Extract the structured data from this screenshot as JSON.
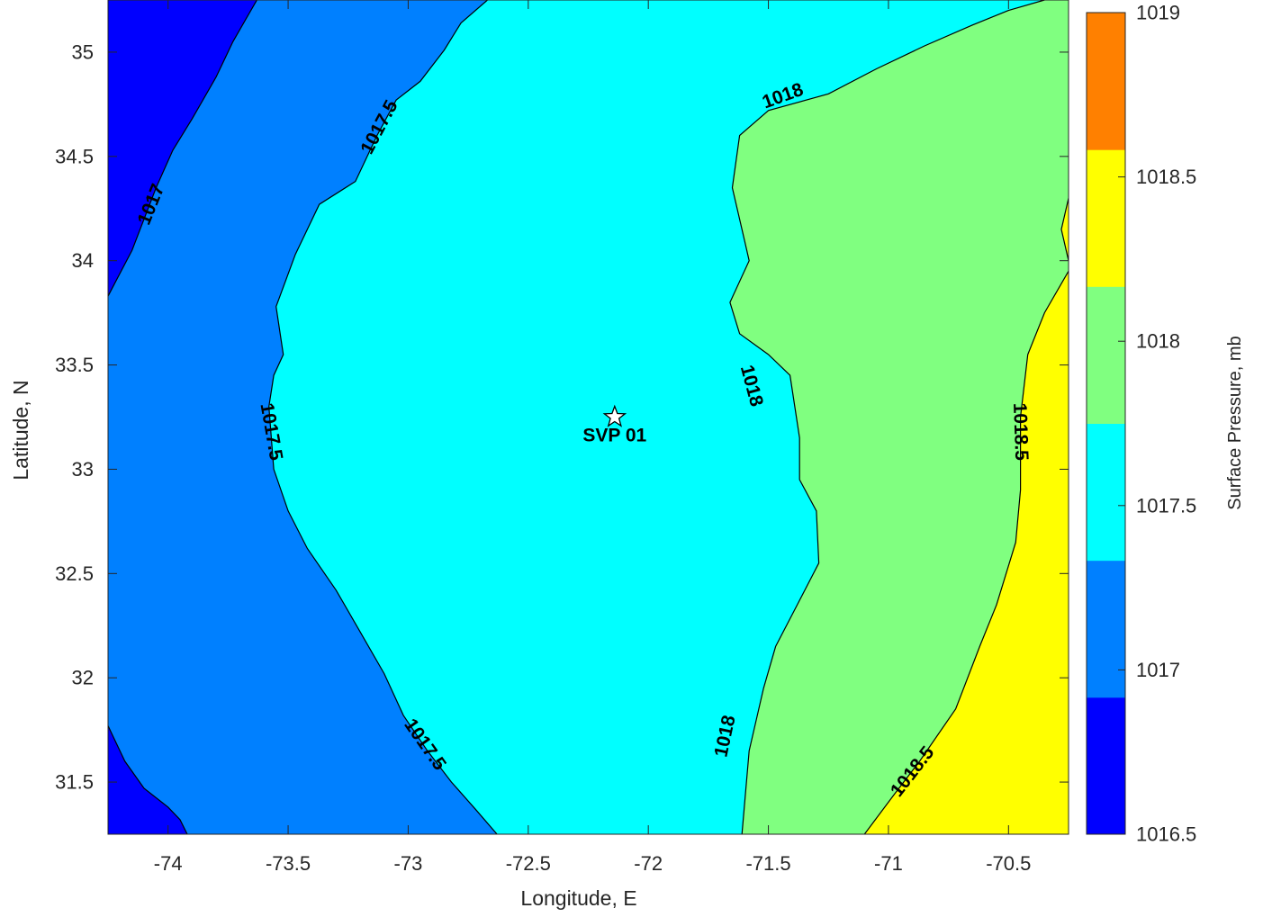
{
  "chart_data": {
    "type": "contourf",
    "title": "",
    "xlabel": "Longitude, E",
    "ylabel": "Latitude, N",
    "xlim": [
      -74.25,
      -70.25
    ],
    "ylim": [
      31.25,
      35.25
    ],
    "xticks": [
      -74,
      -73.5,
      -73,
      -72.5,
      -72,
      -71.5,
      -71,
      -70.5
    ],
    "yticks": [
      31.5,
      32,
      32.5,
      33,
      33.5,
      34,
      34.5,
      35
    ],
    "x_tick_labels": [
      "-74",
      "-73.5",
      "-73",
      "-72.5",
      "-72",
      "-71.5",
      "-71",
      "-70.5"
    ],
    "y_tick_labels": [
      "31.5",
      "32",
      "32.5",
      "33",
      "33.5",
      "34",
      "34.5",
      "35"
    ],
    "colorbar": {
      "label": "Surface Pressure, mb",
      "range": [
        1016.5,
        1019
      ],
      "ticks": [
        1016.5,
        1017,
        1017.5,
        1018,
        1018.5,
        1019
      ],
      "tick_labels": [
        "1016.5",
        "1017",
        "1017.5",
        "1018",
        "1018.5",
        "1019"
      ],
      "bands": [
        {
          "from": 1016.5,
          "to": 1016.9167,
          "color": "#0000ff"
        },
        {
          "from": 1016.9167,
          "to": 1017.3333,
          "color": "#0080ff"
        },
        {
          "from": 1017.3333,
          "to": 1017.75,
          "color": "#00ffff"
        },
        {
          "from": 1017.75,
          "to": 1018.1667,
          "color": "#80ff80"
        },
        {
          "from": 1018.1667,
          "to": 1018.5833,
          "color": "#ffff00"
        },
        {
          "from": 1018.5833,
          "to": 1019,
          "color": "#ff8000"
        }
      ]
    },
    "regions": [
      {
        "level": 1016.5,
        "color": "#0000ff"
      },
      {
        "level": 1017,
        "color": "#0080ff"
      },
      {
        "level": 1017.5,
        "color": "#00ffff"
      },
      {
        "level": 1018,
        "color": "#80ff80"
      },
      {
        "level": 1018.5,
        "color": "#ffff00"
      }
    ],
    "contours": [
      {
        "level": 1017,
        "segments": [
          [
            [
              -74.25,
              33.83
            ],
            [
              -74.15,
              34.05
            ],
            [
              -74.05,
              34.35
            ],
            [
              -73.98,
              34.53
            ],
            [
              -73.9,
              34.68
            ],
            [
              -73.8,
              34.88
            ],
            [
              -73.73,
              35.05
            ],
            [
              -73.68,
              35.15
            ],
            [
              -73.63,
              35.25
            ]
          ],
          [
            [
              -74.25,
              31.77
            ],
            [
              -74.18,
              31.6
            ],
            [
              -74.1,
              31.47
            ],
            [
              -74.0,
              31.38
            ],
            [
              -73.95,
              31.32
            ],
            [
              -73.92,
              31.25
            ]
          ]
        ]
      },
      {
        "level": 1017.5,
        "segments": [
          [
            [
              -72.67,
              35.25
            ],
            [
              -72.78,
              35.14
            ],
            [
              -72.85,
              35.01
            ],
            [
              -72.95,
              34.86
            ],
            [
              -73.05,
              34.77
            ],
            [
              -73.13,
              34.6
            ],
            [
              -73.22,
              34.38
            ],
            [
              -73.37,
              34.27
            ],
            [
              -73.47,
              34.03
            ],
            [
              -73.55,
              33.78
            ],
            [
              -73.52,
              33.55
            ],
            [
              -73.56,
              33.45
            ],
            [
              -73.58,
              33.3
            ],
            [
              -73.56,
              33.0
            ],
            [
              -73.5,
              32.8
            ],
            [
              -73.42,
              32.62
            ],
            [
              -73.3,
              32.42
            ],
            [
              -73.2,
              32.22
            ],
            [
              -73.1,
              32.02
            ],
            [
              -73.02,
              31.82
            ],
            [
              -72.92,
              31.65
            ],
            [
              -72.82,
              31.5
            ],
            [
              -72.72,
              31.37
            ],
            [
              -72.63,
              31.25
            ]
          ]
        ]
      },
      {
        "level": 1018,
        "segments": [
          [
            [
              -70.35,
              35.25
            ],
            [
              -70.5,
              35.2
            ],
            [
              -70.65,
              35.13
            ],
            [
              -70.85,
              35.03
            ],
            [
              -71.05,
              34.92
            ],
            [
              -71.25,
              34.8
            ],
            [
              -71.5,
              34.72
            ],
            [
              -71.62,
              34.6
            ],
            [
              -71.65,
              34.35
            ],
            [
              -71.6,
              34.1
            ],
            [
              -71.58,
              34.0
            ],
            [
              -71.66,
              33.8
            ],
            [
              -71.62,
              33.65
            ],
            [
              -71.5,
              33.55
            ],
            [
              -71.41,
              33.45
            ],
            [
              -71.37,
              33.15
            ],
            [
              -71.37,
              32.95
            ],
            [
              -71.3,
              32.8
            ],
            [
              -71.29,
              32.55
            ],
            [
              -71.38,
              32.35
            ],
            [
              -71.47,
              32.15
            ],
            [
              -71.52,
              31.95
            ],
            [
              -71.58,
              31.65
            ],
            [
              -71.61,
              31.25
            ]
          ]
        ]
      },
      {
        "level": 1018.5,
        "segments": [
          [
            [
              -70.25,
              34.3
            ],
            [
              -70.28,
              34.15
            ],
            [
              -70.25,
              34.0
            ]
          ],
          [
            [
              -70.25,
              33.95
            ],
            [
              -70.35,
              33.75
            ],
            [
              -70.42,
              33.55
            ],
            [
              -70.45,
              33.25
            ],
            [
              -70.45,
              32.9
            ],
            [
              -70.47,
              32.65
            ],
            [
              -70.55,
              32.35
            ],
            [
              -70.62,
              32.15
            ],
            [
              -70.72,
              31.85
            ],
            [
              -70.87,
              31.6
            ],
            [
              -70.97,
              31.45
            ],
            [
              -71.1,
              31.25
            ]
          ]
        ]
      }
    ],
    "contour_labels": [
      {
        "text": "1017",
        "x": -74.07,
        "y": 34.27,
        "angle": -68
      },
      {
        "text": "1017.5",
        "x": -73.12,
        "y": 34.64,
        "angle": -62
      },
      {
        "text": "1017.5",
        "x": -73.57,
        "y": 33.18,
        "angle": 80
      },
      {
        "text": "1017.5",
        "x": -72.93,
        "y": 31.68,
        "angle": 55
      },
      {
        "text": "1018",
        "x": -71.44,
        "y": 34.79,
        "angle": -20
      },
      {
        "text": "1018",
        "x": -71.57,
        "y": 33.4,
        "angle": 75
      },
      {
        "text": "1018",
        "x": -71.68,
        "y": 31.72,
        "angle": -78
      },
      {
        "text": "1018.5",
        "x": -70.45,
        "y": 33.18,
        "angle": 88
      },
      {
        "text": "1018.5",
        "x": -70.9,
        "y": 31.55,
        "angle": -52
      }
    ],
    "station": {
      "label": "SVP 01",
      "x": -72.14,
      "y": 33.25
    }
  }
}
